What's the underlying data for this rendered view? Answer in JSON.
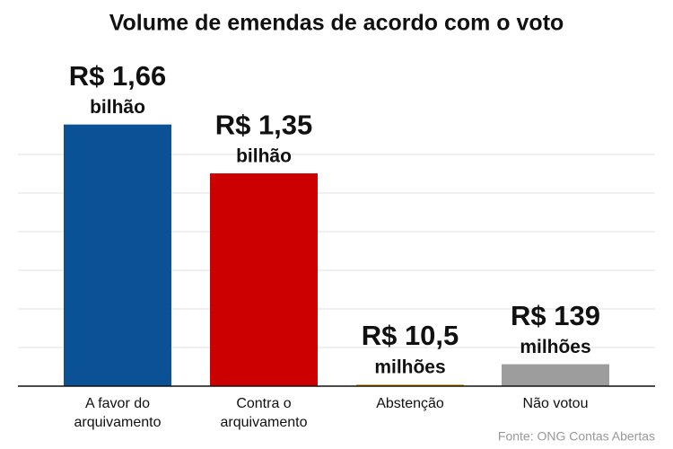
{
  "chart_data": {
    "type": "bar",
    "title": "Volume de emendas de acordo com o voto",
    "categories": [
      [
        "A favor do",
        "arquivamento"
      ],
      [
        "Contra o",
        "arquivamento"
      ],
      [
        "Abstenção"
      ],
      [
        "Não votou"
      ]
    ],
    "values": [
      1.66,
      1.35,
      0.0105,
      0.139
    ],
    "value_labels": [
      [
        "R$ 1,66",
        "bilhão"
      ],
      [
        "R$ 1,35",
        "bilhão"
      ],
      [
        "R$ 10,5",
        "milhões"
      ],
      [
        "R$ 139",
        "milhões"
      ]
    ],
    "colors": [
      "#0b5195",
      "#cc0000",
      "#d9a21b",
      "#9d9d9d"
    ],
    "ylim": [
      0,
      2.0
    ],
    "gridlines": [
      0.245,
      0.49,
      0.735,
      0.98,
      1.225,
      1.47
    ],
    "source": "Fonte: ONG Contas Abertas"
  }
}
